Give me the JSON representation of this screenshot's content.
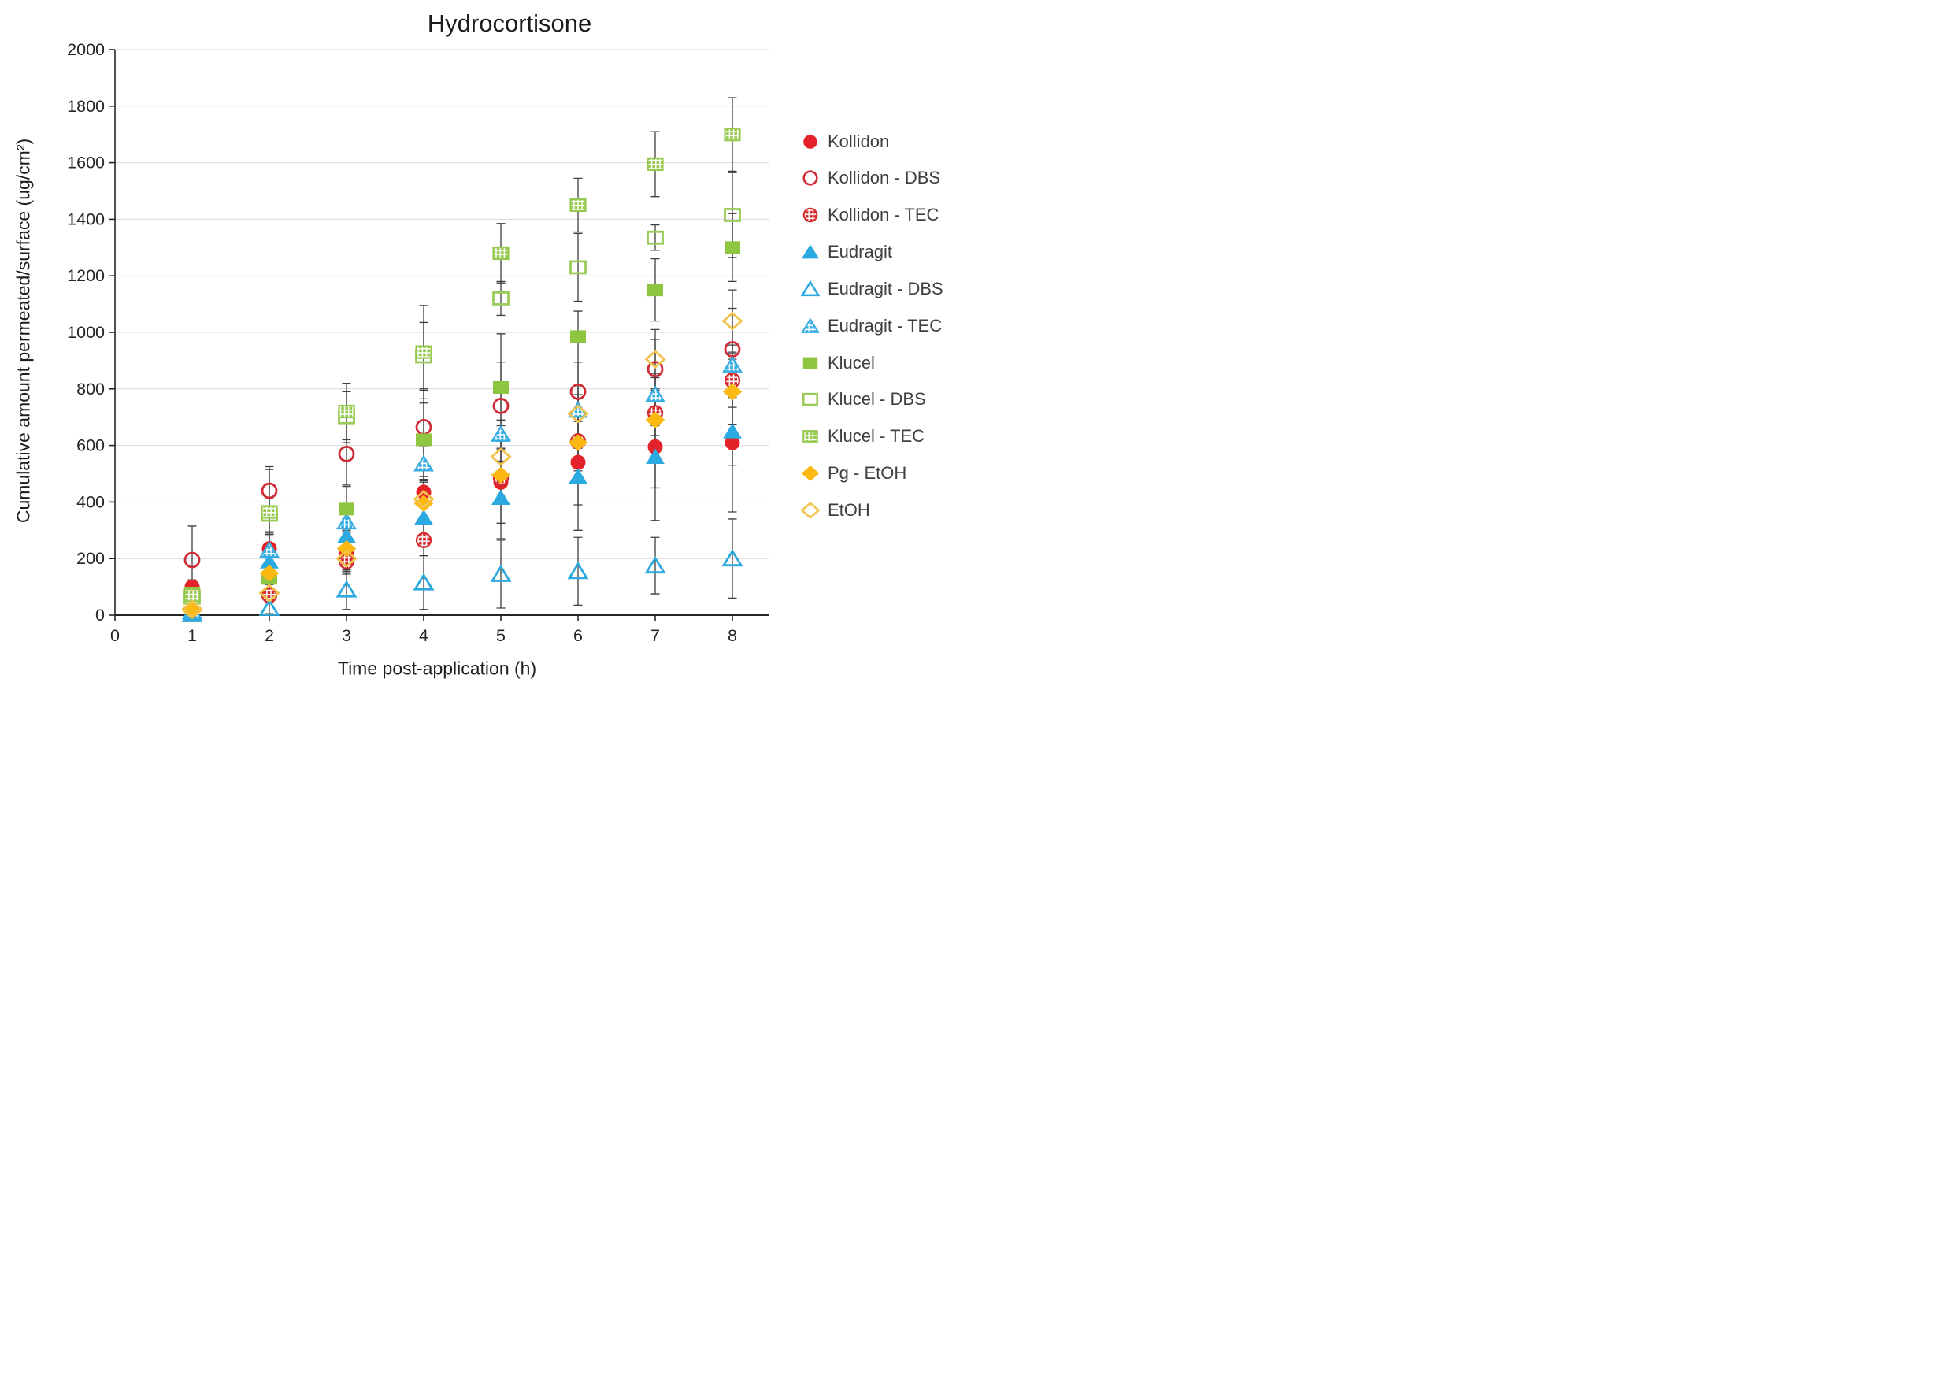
{
  "title": "Hydrocortisone",
  "y_axis": {
    "label": "Cumulative amount permeated/surface (ug/cm²)",
    "min": 0,
    "max": 2000,
    "tick_step": 200,
    "ticks": [
      "0",
      "200",
      "400",
      "600",
      "800",
      "1000",
      "1200",
      "1400",
      "1600",
      "1800",
      "2000"
    ]
  },
  "x_axis": {
    "label": "Time post-application (h)",
    "min": 0,
    "max": 8,
    "ticks": [
      "0",
      "1",
      "2",
      "3",
      "4",
      "5",
      "6",
      "7",
      "8"
    ]
  },
  "colors": {
    "gridline": "#d9d9d9",
    "axis": "#262626",
    "error_bar": "#3f3f3f",
    "tick_text": "#262626",
    "legend_text": "#3f3f3f",
    "title_text": "#1c1c1c"
  },
  "chart_data": {
    "type": "scatter",
    "grid": true,
    "legend_position": "right",
    "x": [
      1,
      2,
      3,
      4,
      5,
      6,
      7,
      8
    ],
    "series": [
      {
        "name": "Kollidon",
        "shape": "circle",
        "style": "filled",
        "color": "#e3222a",
        "values": [
          100,
          235,
          215,
          435,
          470,
          540,
          595,
          610
        ],
        "errors": [
          25,
          55,
          60,
          90,
          200,
          240,
          260,
          245
        ]
      },
      {
        "name": "Kollidon - DBS",
        "shape": "circle",
        "style": "open",
        "color": "#cf2b35",
        "values": [
          195,
          440,
          570,
          665,
          740,
          790,
          870,
          940
        ],
        "errors": [
          120,
          85,
          110,
          135,
          155,
          105,
          105,
          145
        ]
      },
      {
        "name": "Kollidon - TEC",
        "shape": "circle",
        "style": "grid",
        "color": "#d42a2e",
        "values": [
          75,
          70,
          190,
          265,
          485,
          615,
          715,
          830
        ],
        "errors": [
          20,
          25,
          45,
          55,
          60,
          70,
          80,
          95
        ]
      },
      {
        "name": "Eudragit",
        "shape": "triangle",
        "style": "filled",
        "color": "#2aaae1",
        "values": [
          8,
          190,
          280,
          345,
          415,
          490,
          560,
          650
        ],
        "errors": [
          10,
          50,
          60,
          80,
          90,
          100,
          110,
          120
        ]
      },
      {
        "name": "Eudragit - DBS",
        "shape": "triangle",
        "style": "open",
        "color": "#2ea9dd",
        "values": [
          3,
          25,
          90,
          115,
          145,
          155,
          175,
          200
        ],
        "errors": [
          5,
          20,
          70,
          95,
          120,
          120,
          100,
          140
        ]
      },
      {
        "name": "Eudragit - TEC",
        "shape": "triangle",
        "style": "grid",
        "color": "#35ace2",
        "values": [
          12,
          230,
          330,
          535,
          640,
          725,
          780,
          885
        ],
        "errors": [
          10,
          55,
          30,
          60,
          50,
          170,
          60,
          70
        ]
      },
      {
        "name": "Klucel",
        "shape": "square",
        "style": "filled",
        "color": "#8ec641",
        "values": [
          78,
          130,
          375,
          620,
          805,
          985,
          1150,
          1300
        ],
        "errors": [
          30,
          45,
          80,
          130,
          190,
          90,
          110,
          120
        ]
      },
      {
        "name": "Klucel - DBS",
        "shape": "square",
        "style": "open",
        "color": "#9bcb58",
        "values": [
          62,
          355,
          700,
          915,
          1120,
          1230,
          1335,
          1415
        ],
        "errors": [
          25,
          60,
          90,
          120,
          60,
          120,
          45,
          150
        ]
      },
      {
        "name": "Klucel - TEC",
        "shape": "square",
        "style": "grid",
        "color": "#97c94f",
        "values": [
          70,
          365,
          720,
          930,
          1280,
          1450,
          1595,
          1700
        ],
        "errors": [
          40,
          150,
          100,
          165,
          105,
          95,
          115,
          130
        ]
      },
      {
        "name": "Pg - EtOH",
        "shape": "diamond",
        "style": "filled",
        "color": "#fcb813",
        "values": [
          15,
          148,
          235,
          395,
          495,
          610,
          690,
          790
        ],
        "errors": [
          12,
          40,
          55,
          75,
          90,
          100,
          110,
          115
        ]
      },
      {
        "name": "EtOH",
        "shape": "diamond",
        "style": "open",
        "color": "#f1c24c",
        "values": [
          22,
          78,
          200,
          410,
          560,
          712,
          905,
          1040
        ],
        "errors": [
          15,
          30,
          50,
          70,
          85,
          95,
          105,
          110
        ]
      }
    ]
  }
}
